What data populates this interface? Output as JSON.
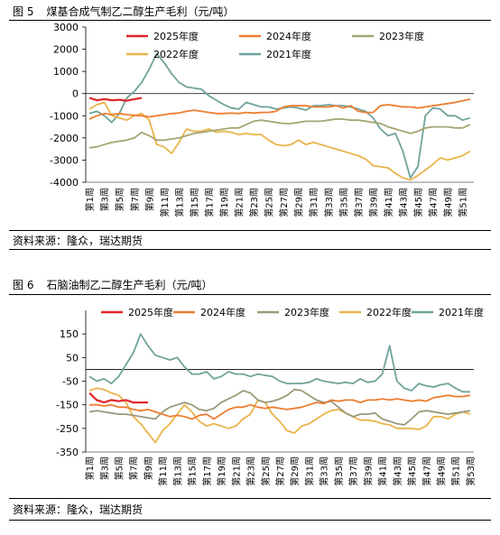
{
  "figures": [
    {
      "number": "图 5",
      "title": "煤基合成气制乙二醇生产毛利（元/吨）",
      "source": "资料来源：隆众，瑞达期货"
    },
    {
      "number": "图 6",
      "title": "石脑油制乙二醇生产毛利（元/吨）",
      "source": "资料来源：隆众，瑞达期货"
    }
  ],
  "chart_data": [
    {
      "type": "line",
      "ylim": [
        -4000,
        3000
      ],
      "yticks": [
        "3000",
        "2000",
        "1000",
        "0",
        "-1000",
        "-2000",
        "-3000",
        "-4000"
      ],
      "xticks": [
        "第1周",
        "第3周",
        "第5周",
        "第7周",
        "第9周",
        "第11周",
        "第13周",
        "第15周",
        "第17周",
        "第19周",
        "第21周",
        "第23周",
        "第25周",
        "第27周",
        "第29周",
        "第31周",
        "第33周",
        "第35周",
        "第37周",
        "第39周",
        "第41周",
        "第43周",
        "第45周",
        "第47周",
        "第49周",
        "第51周"
      ],
      "grid": false,
      "legend_position": "top",
      "series": [
        {
          "name": "2025年度",
          "color": "#e0262b",
          "values": [
            -200,
            -300,
            -250,
            -300,
            -280,
            -320,
            -250,
            -200
          ]
        },
        {
          "name": "2024年度",
          "color": "#ed7d31",
          "values": [
            -1150,
            -1000,
            -900,
            -950,
            -900,
            -950,
            -980,
            -1000,
            -1050,
            -1000,
            -950,
            -900,
            -880,
            -800,
            -750,
            -800,
            -850,
            -900,
            -900,
            -880,
            -900,
            -850,
            -880,
            -850,
            -850,
            -800,
            -600,
            -550,
            -550,
            -550,
            -600,
            -600,
            -600,
            -550,
            -650,
            -550,
            -800,
            -850,
            -850,
            -550,
            -500,
            -550,
            -600,
            -600,
            -650,
            -600,
            -550,
            -500,
            -450,
            -400,
            -320,
            -250
          ]
        },
        {
          "name": "2023年度",
          "color": "#a5a572",
          "values": [
            -2450,
            -2400,
            -2300,
            -2200,
            -2150,
            -2100,
            -2000,
            -1750,
            -1900,
            -2100,
            -2100,
            -2050,
            -2000,
            -1900,
            -1800,
            -1750,
            -1700,
            -1650,
            -1600,
            -1550,
            -1550,
            -1400,
            -1250,
            -1200,
            -1250,
            -1300,
            -1350,
            -1350,
            -1300,
            -1250,
            -1250,
            -1250,
            -1200,
            -1150,
            -1150,
            -1200,
            -1200,
            -1250,
            -1300,
            -1350,
            -1500,
            -1600,
            -1700,
            -1800,
            -1700,
            -1550,
            -1500,
            -1500,
            -1500,
            -1550,
            -1550,
            -1400
          ]
        },
        {
          "name": "2022年度",
          "color": "#eab44a",
          "values": [
            -700,
            -500,
            -400,
            -1000,
            -1100,
            -1200,
            -1000,
            -900,
            -1200,
            -2300,
            -2400,
            -2700,
            -2200,
            -1600,
            -1700,
            -1700,
            -1600,
            -1750,
            -1700,
            -1750,
            -1850,
            -1800,
            -1850,
            -1850,
            -2100,
            -2300,
            -2350,
            -2300,
            -2100,
            -2300,
            -2200,
            -2300,
            -2400,
            -2500,
            -2600,
            -2700,
            -2800,
            -2950,
            -3250,
            -3300,
            -3350,
            -3600,
            -3800,
            -3900,
            -3700,
            -3450,
            -3200,
            -2900,
            -3000,
            -2900,
            -2800,
            -2600
          ]
        },
        {
          "name": "2021年度",
          "color": "#6fa39b",
          "values": [
            -900,
            -800,
            -1000,
            -1300,
            -900,
            -200,
            100,
            500,
            1100,
            1800,
            1400,
            900,
            500,
            300,
            250,
            200,
            -100,
            -300,
            -500,
            -650,
            -700,
            -400,
            -500,
            -600,
            -600,
            -700,
            -650,
            -600,
            -650,
            -750,
            -550,
            -550,
            -500,
            -550,
            -550,
            -600,
            -700,
            -800,
            -1100,
            -1600,
            -1900,
            -1800,
            -2600,
            -3800,
            -3300,
            -1000,
            -650,
            -700,
            -1000,
            -1000,
            -1200,
            -1100
          ]
        }
      ]
    },
    {
      "type": "line",
      "ylim": [
        -350,
        250
      ],
      "yticks": [
        "150",
        "50",
        "-50",
        "-150",
        "-250",
        "-350"
      ],
      "xticks": [
        "第1周",
        "第3周",
        "第5周",
        "第7周",
        "第9周",
        "第11周",
        "第13周",
        "第15周",
        "第17周",
        "第19周",
        "第21周",
        "第23周",
        "第25周",
        "第27周",
        "第29周",
        "第31周",
        "第33周",
        "第35周",
        "第37周",
        "第39周",
        "第41周",
        "第43周",
        "第45周",
        "第47周",
        "第49周",
        "第51周",
        "第53周"
      ],
      "grid": false,
      "legend_position": "top",
      "series": [
        {
          "name": "2025年度",
          "color": "#e0262b",
          "values": [
            -100,
            -130,
            -140,
            -130,
            -135,
            -130,
            -140,
            -140,
            -140
          ]
        },
        {
          "name": "2024年度",
          "color": "#ed7d31",
          "values": [
            -150,
            -150,
            -155,
            -150,
            -160,
            -160,
            -170,
            -175,
            -170,
            -180,
            -190,
            -200,
            -195,
            -200,
            -210,
            -195,
            -190,
            -210,
            -190,
            -170,
            -160,
            -160,
            -150,
            -160,
            -165,
            -160,
            -165,
            -170,
            -165,
            -160,
            -150,
            -140,
            -145,
            -130,
            -135,
            -130,
            -130,
            -140,
            -130,
            -130,
            -125,
            -130,
            -125,
            -130,
            -135,
            -130,
            -135,
            -120,
            -115,
            -110,
            -115,
            -115,
            -110
          ]
        },
        {
          "name": "2023年度",
          "color": "#9a9a7a",
          "values": [
            -180,
            -175,
            -180,
            -185,
            -190,
            -190,
            -195,
            -200,
            -205,
            -210,
            -180,
            -160,
            -150,
            -140,
            -150,
            -170,
            -175,
            -165,
            -140,
            -125,
            -110,
            -90,
            -100,
            -130,
            -140,
            -135,
            -125,
            -110,
            -85,
            -90,
            -110,
            -130,
            -140,
            -135,
            -160,
            -185,
            -200,
            -190,
            -190,
            -185,
            -210,
            -220,
            -230,
            -235,
            -210,
            -180,
            -175,
            -180,
            -185,
            -190,
            -185,
            -180,
            -175
          ]
        },
        {
          "name": "2022年度",
          "color": "#eab44a",
          "values": [
            -90,
            -80,
            -85,
            -100,
            -110,
            -140,
            -200,
            -230,
            -270,
            -310,
            -260,
            -230,
            -190,
            -150,
            -180,
            -220,
            -240,
            -230,
            -240,
            -250,
            -240,
            -210,
            -190,
            -130,
            -140,
            -190,
            -220,
            -260,
            -270,
            -240,
            -230,
            -210,
            -190,
            -175,
            -170,
            -185,
            -200,
            -215,
            -215,
            -220,
            -230,
            -235,
            -250,
            -250,
            -250,
            -255,
            -240,
            -200,
            -200,
            -210,
            -190,
            -180,
            -190
          ]
        },
        {
          "name": "2021年度",
          "color": "#6fa39b",
          "values": [
            -30,
            -50,
            -40,
            -60,
            -30,
            20,
            70,
            150,
            100,
            60,
            50,
            40,
            50,
            10,
            -20,
            -20,
            -10,
            -40,
            -30,
            -10,
            -20,
            -20,
            -30,
            -20,
            -25,
            -30,
            -50,
            -60,
            -60,
            -60,
            -55,
            -40,
            -50,
            -55,
            -60,
            -55,
            -60,
            -40,
            -55,
            -50,
            -20,
            100,
            -50,
            -80,
            -90,
            -60,
            -70,
            -75,
            -65,
            -60,
            -80,
            -95,
            -95
          ]
        }
      ]
    }
  ]
}
